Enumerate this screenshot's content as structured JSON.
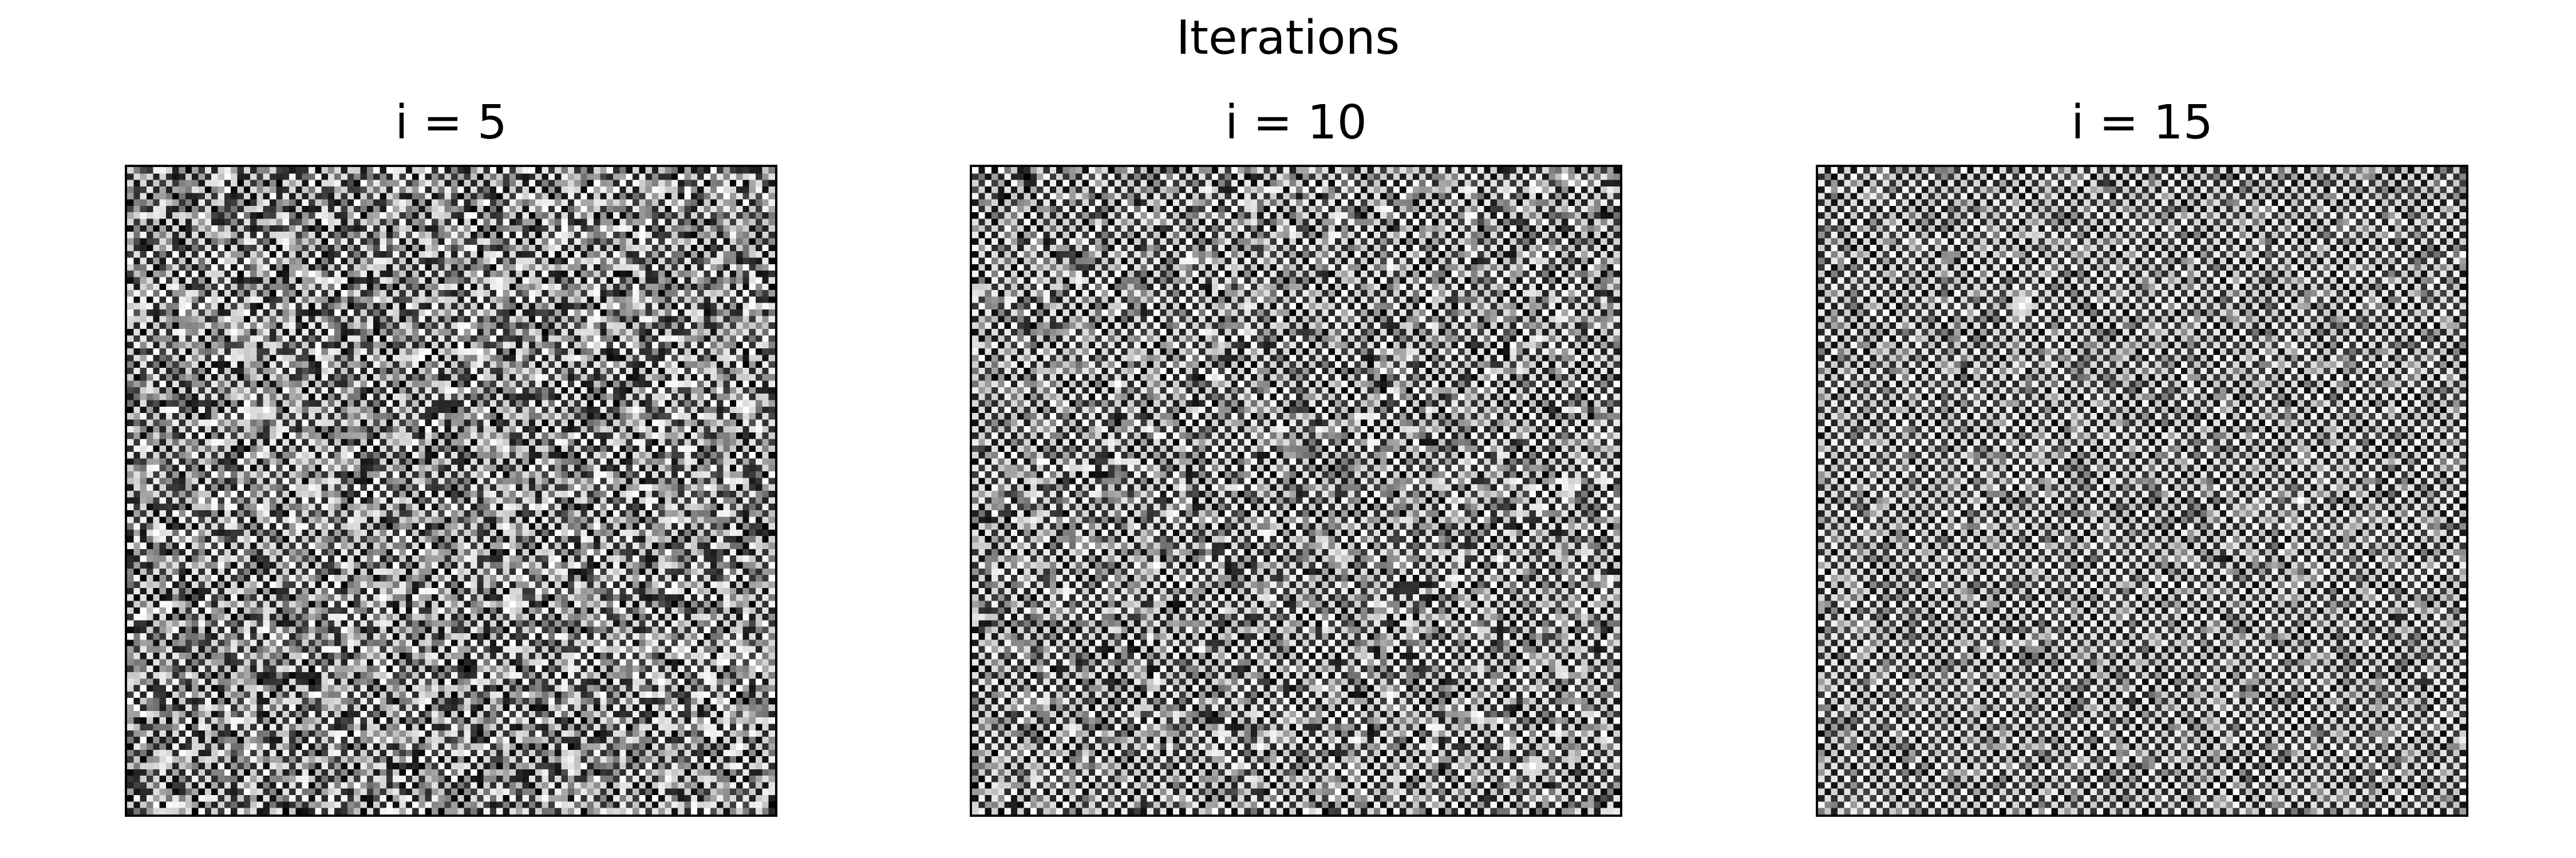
{
  "figure": {
    "suptitle": "Iterations"
  },
  "panels": [
    {
      "title": "i = 5",
      "image": {
        "type": "grayscale-noise-grid",
        "grid_size": 100,
        "pattern": "checkerboard-dominated noise with gray patches and a few isolated bright and dark pixels",
        "colormap": "gray"
      }
    },
    {
      "title": "i = 10",
      "image": {
        "type": "grayscale-noise-grid",
        "grid_size": 100,
        "pattern": "stronger checkerboard structure with gray patches and a few isolated bright pixels",
        "colormap": "gray"
      }
    },
    {
      "title": "i = 15",
      "image": {
        "type": "grayscale-noise-grid",
        "grid_size": 100,
        "pattern": "nearly uniform checkerboard with faint gray diagonal bands and a few isolated bright pixels",
        "colormap": "gray"
      }
    }
  ]
}
